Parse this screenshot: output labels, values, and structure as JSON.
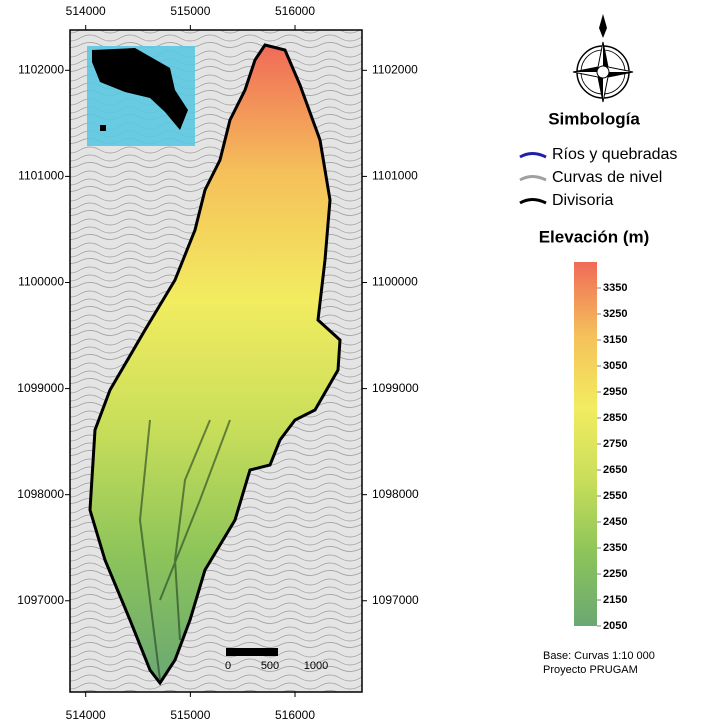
{
  "map": {
    "xlim": [
      513850,
      516640
    ],
    "ylim": [
      1096140,
      1102380
    ],
    "xticks": [
      514000,
      515000,
      516000
    ],
    "yticks": [
      1102000,
      1101000,
      1100000,
      1099000,
      1098000,
      1097000
    ]
  },
  "legend": {
    "title": "Simbología",
    "items": [
      {
        "label": "Ríos y quebradas",
        "color": "#1f1fa8"
      },
      {
        "label": "Curvas de nivel",
        "color": "#a0a0a0"
      },
      {
        "label": "Divisoria",
        "color": "#000000"
      }
    ]
  },
  "colorbar": {
    "title": "Elevación (m)",
    "lim": [
      2050,
      3450
    ],
    "ticks": [
      3350,
      3250,
      3150,
      3050,
      2950,
      2850,
      2750,
      2650,
      2550,
      2450,
      2350,
      2250,
      2150,
      2050
    ],
    "colors": [
      "#6aa873",
      "#8cc45a",
      "#c8de5a",
      "#f2ec60",
      "#f5c05a",
      "#f06a58"
    ]
  },
  "scale_bar": {
    "labels": [
      0,
      500,
      1000
    ]
  },
  "notes": [
    "Base: Curvas 1:10 000",
    "Proyecto PRUGAM"
  ]
}
